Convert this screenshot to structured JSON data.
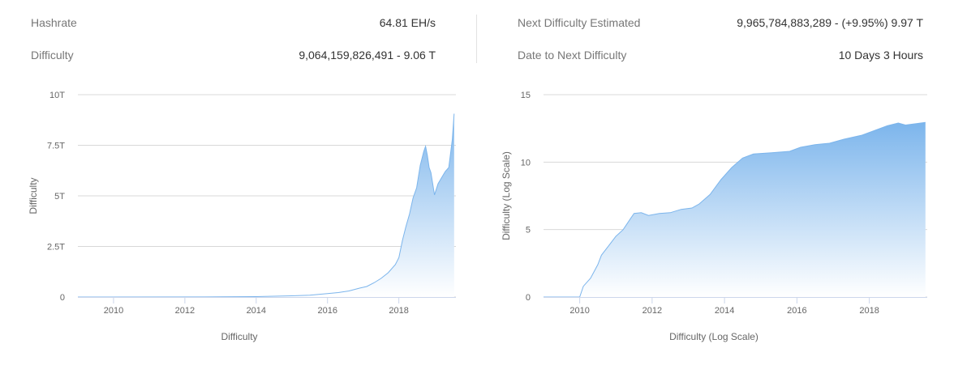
{
  "stats": {
    "hashrate_label": "Hashrate",
    "hashrate_value": "64.81 EH/s",
    "difficulty_label": "Difficulty",
    "difficulty_value": "9,064,159,826,491 - 9.06 T",
    "next_label": "Next Difficulty Estimated",
    "next_value": "9,965,784,883,289 - (+9.95%) 9.97 T",
    "date_label": "Date to Next Difficulty",
    "date_value": "10 Days 3 Hours"
  },
  "colors": {
    "fill_top": "#7cb5ec",
    "fill_bottom": "#ffffff",
    "line": "#7cb5ec",
    "grid": "#d8d8d8"
  },
  "chart_data": [
    {
      "type": "area",
      "xlabel": "Difficulty",
      "ylabel": "Difficulty",
      "xlim": [
        2009.0,
        2019.6
      ],
      "ylim": [
        0,
        10
      ],
      "y_unit": "T",
      "x_ticks": [
        2010,
        2012,
        2014,
        2016,
        2018
      ],
      "y_ticks": [
        {
          "v": 0,
          "label": "0"
        },
        {
          "v": 2.5,
          "label": "2.5T"
        },
        {
          "v": 5,
          "label": "5T"
        },
        {
          "v": 7.5,
          "label": "7.5T"
        },
        {
          "v": 10,
          "label": "10T"
        }
      ],
      "grid": true,
      "series": [
        {
          "x": [
            2009.0,
            2013.0,
            2014.0,
            2014.5,
            2015.0,
            2015.5,
            2016.0,
            2016.3,
            2016.6,
            2016.9,
            2017.1,
            2017.3,
            2017.5,
            2017.7,
            2017.9,
            2018.0,
            2018.1,
            2018.2,
            2018.3,
            2018.4,
            2018.5,
            2018.6,
            2018.7,
            2018.75,
            2018.8,
            2018.85,
            2018.9,
            2019.0,
            2019.1,
            2019.2,
            2019.3,
            2019.4,
            2019.5,
            2019.55
          ],
          "y": [
            0,
            0.01,
            0.02,
            0.04,
            0.06,
            0.09,
            0.17,
            0.22,
            0.3,
            0.44,
            0.52,
            0.7,
            0.92,
            1.2,
            1.6,
            1.95,
            2.8,
            3.5,
            4.1,
            4.9,
            5.4,
            6.5,
            7.2,
            7.45,
            7.0,
            6.4,
            6.15,
            5.05,
            5.6,
            5.9,
            6.2,
            6.4,
            7.8,
            9.06
          ]
        }
      ]
    },
    {
      "type": "area",
      "xlabel": "Difficulty (Log Scale)",
      "ylabel": "Difficulty (Log Scale)",
      "xlim": [
        2009.0,
        2019.6
      ],
      "ylim": [
        0,
        15
      ],
      "x_ticks": [
        2010,
        2012,
        2014,
        2016,
        2018
      ],
      "y_ticks": [
        {
          "v": 0,
          "label": "0"
        },
        {
          "v": 5,
          "label": "5"
        },
        {
          "v": 10,
          "label": "10"
        },
        {
          "v": 15,
          "label": "15"
        }
      ],
      "grid": true,
      "series": [
        {
          "x": [
            2009.0,
            2010.0,
            2010.1,
            2010.3,
            2010.5,
            2010.6,
            2010.8,
            2011.0,
            2011.2,
            2011.4,
            2011.5,
            2011.7,
            2011.9,
            2012.2,
            2012.5,
            2012.8,
            2013.1,
            2013.3,
            2013.6,
            2013.9,
            2014.2,
            2014.5,
            2014.8,
            2015.3,
            2015.8,
            2016.1,
            2016.5,
            2016.9,
            2017.3,
            2017.8,
            2018.2,
            2018.5,
            2018.8,
            2019.0,
            2019.3,
            2019.55
          ],
          "y": [
            0,
            0,
            0.8,
            1.4,
            2.4,
            3.1,
            3.8,
            4.5,
            5.0,
            5.8,
            6.2,
            6.25,
            6.05,
            6.2,
            6.25,
            6.5,
            6.6,
            6.9,
            7.6,
            8.7,
            9.6,
            10.3,
            10.6,
            10.7,
            10.8,
            11.1,
            11.3,
            11.4,
            11.7,
            12.0,
            12.4,
            12.7,
            12.9,
            12.75,
            12.85,
            12.95
          ]
        }
      ]
    }
  ]
}
